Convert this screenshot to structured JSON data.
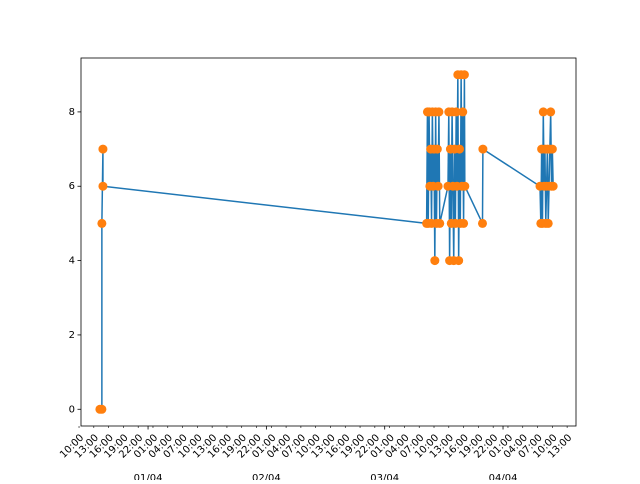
{
  "chart_data": {
    "type": "line",
    "x": [
      "31/03 14:14",
      "31/03 14:38",
      "31/03 14:38",
      "31/03 14:51",
      "31/03 14:51",
      "03/04 08:30",
      "03/04 08:40",
      "03/04 08:50",
      "03/04 09:00",
      "03/04 09:10",
      "03/04 09:20",
      "03/04 09:30",
      "03/04 09:40",
      "03/04 09:50",
      "03/04 10:00",
      "03/04 10:10",
      "03/04 10:20",
      "03/04 10:30",
      "03/04 10:40",
      "03/04 10:50",
      "03/04 11:00",
      "03/04 11:10",
      "03/04 12:50",
      "03/04 13:00",
      "03/04 13:10",
      "03/04 13:20",
      "03/04 13:30",
      "03/04 13:40",
      "03/04 13:50",
      "03/04 14:00",
      "03/04 14:10",
      "03/04 14:20",
      "03/04 14:30",
      "03/04 14:40",
      "03/04 14:50",
      "03/04 15:00",
      "03/04 15:10",
      "03/04 15:20",
      "03/04 15:30",
      "03/04 15:40",
      "03/04 15:50",
      "03/04 16:00",
      "03/04 16:10",
      "03/04 16:15",
      "03/04 19:50",
      "03/04 19:55",
      "04/04 07:30",
      "04/04 07:40",
      "04/04 07:50",
      "04/04 08:00",
      "04/04 08:10",
      "04/04 08:20",
      "04/04 08:30",
      "04/04 08:40",
      "04/04 08:50",
      "04/04 09:00",
      "04/04 09:10",
      "04/04 09:20",
      "04/04 09:30",
      "04/04 09:40",
      "04/04 09:50",
      "04/04 10:00",
      "04/04 10:10"
    ],
    "series": [
      {
        "color": "#1f77b4",
        "marker_color": "#ff7f0e",
        "values": [
          0,
          0,
          5,
          7,
          6,
          5,
          8,
          5,
          8,
          6,
          7,
          5,
          8,
          6,
          7,
          4,
          8,
          5,
          7,
          6,
          8,
          5,
          6,
          8,
          4,
          7,
          5,
          8,
          6,
          4,
          7,
          5,
          8,
          6,
          9,
          4,
          7,
          5,
          9,
          6,
          8,
          5,
          9,
          6,
          5,
          7,
          6,
          5,
          7,
          5,
          8,
          6,
          7,
          5,
          6,
          7,
          5,
          6,
          7,
          8,
          6,
          7,
          6
        ]
      }
    ],
    "xlim": [
      "31/03 10:24",
      "04/04 14:48"
    ],
    "xticks": [
      {
        "value": "31/03 10:00",
        "label": "10:00"
      },
      {
        "value": "31/03 13:00",
        "label": "13:00"
      },
      {
        "value": "31/03 16:00",
        "label": "16:00"
      },
      {
        "value": "31/03 19:00",
        "label": "19:00"
      },
      {
        "value": "31/03 22:00",
        "label": "22:00"
      },
      {
        "value": "01/04 01:00",
        "label": "01:00"
      },
      {
        "value": "01/04 04:00",
        "label": "04:00"
      },
      {
        "value": "01/04 07:00",
        "label": "07:00"
      },
      {
        "value": "01/04 10:00",
        "label": "10:00"
      },
      {
        "value": "01/04 13:00",
        "label": "13:00"
      },
      {
        "value": "01/04 16:00",
        "label": "16:00"
      },
      {
        "value": "01/04 19:00",
        "label": "19:00"
      },
      {
        "value": "01/04 22:00",
        "label": "22:00"
      },
      {
        "value": "02/04 01:00",
        "label": "01:00"
      },
      {
        "value": "02/04 04:00",
        "label": "04:00"
      },
      {
        "value": "02/04 07:00",
        "label": "07:00"
      },
      {
        "value": "02/04 10:00",
        "label": "10:00"
      },
      {
        "value": "02/04 13:00",
        "label": "13:00"
      },
      {
        "value": "02/04 16:00",
        "label": "16:00"
      },
      {
        "value": "02/04 19:00",
        "label": "19:00"
      },
      {
        "value": "02/04 22:00",
        "label": "22:00"
      },
      {
        "value": "03/04 01:00",
        "label": "01:00"
      },
      {
        "value": "03/04 04:00",
        "label": "04:00"
      },
      {
        "value": "03/04 07:00",
        "label": "07:00"
      },
      {
        "value": "03/04 10:00",
        "label": "10:00"
      },
      {
        "value": "03/04 13:00",
        "label": "13:00"
      },
      {
        "value": "03/04 16:00",
        "label": "16:00"
      },
      {
        "value": "03/04 19:00",
        "label": "19:00"
      },
      {
        "value": "03/04 22:00",
        "label": "22:00"
      },
      {
        "value": "04/04 01:00",
        "label": "01:00"
      },
      {
        "value": "04/04 04:00",
        "label": "04:00"
      },
      {
        "value": "04/04 07:00",
        "label": "07:00"
      },
      {
        "value": "04/04 10:00",
        "label": "10:00"
      },
      {
        "value": "04/04 13:00",
        "label": "13:00"
      }
    ],
    "xticks_major": [
      {
        "value": "01/04 00:00",
        "label": "01/04"
      },
      {
        "value": "02/04 00:00",
        "label": "02/04"
      },
      {
        "value": "03/04 00:00",
        "label": "03/04"
      },
      {
        "value": "04/04 00:00",
        "label": "04/04"
      }
    ],
    "ylim": [
      -0.45,
      9.45
    ],
    "yticks": [
      0,
      2,
      4,
      6,
      8
    ]
  }
}
